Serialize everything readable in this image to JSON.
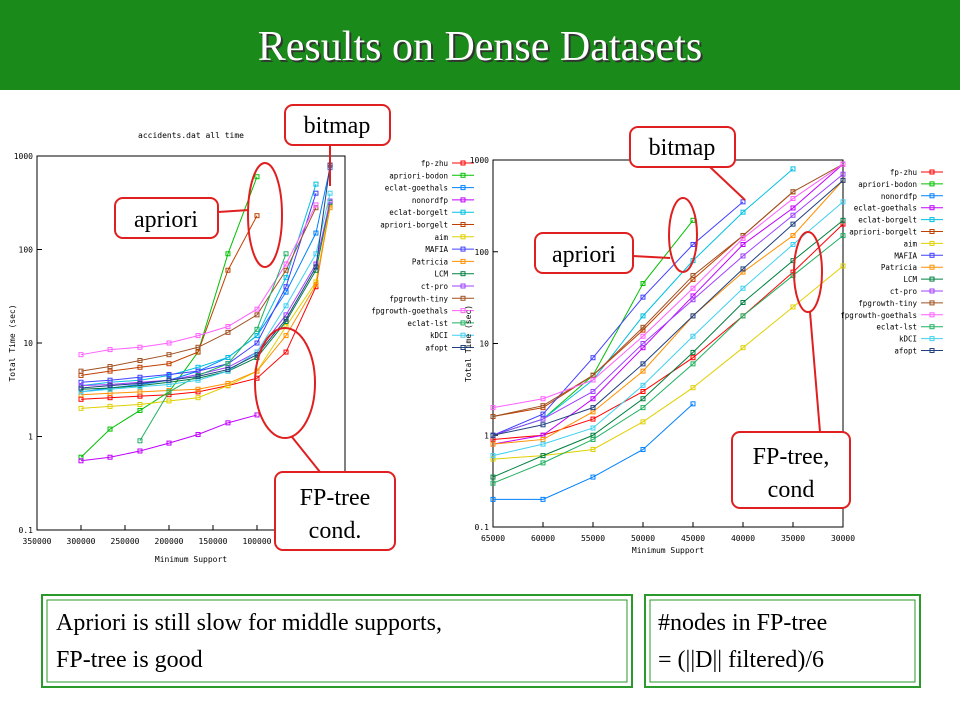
{
  "title": "Results on Dense Datasets",
  "chart_data": [
    {
      "type": "line",
      "title": "accidents.dat all time",
      "x_label": "Minimum Support",
      "y_label": "Total Time (sec)",
      "log_y": true,
      "x": [
        300000,
        267000,
        233000,
        200000,
        167000,
        133000,
        100000,
        67000,
        33000,
        17000
      ],
      "xlim": [
        350000,
        0
      ],
      "xticks": [
        350000,
        300000,
        250000,
        200000,
        150000,
        100000
      ],
      "ylim": [
        0.1,
        1000
      ],
      "yticks": [
        0.1,
        1,
        10,
        100,
        1000
      ],
      "series": [
        {
          "name": "fp-zhu",
          "color": "#ff0000",
          "values": [
            2.5,
            2.6,
            2.7,
            2.8,
            3,
            3.5,
            4.2,
            8,
            40,
            300
          ]
        },
        {
          "name": "apriori-bodon",
          "color": "#00c000",
          "values": [
            0.6,
            1.2,
            1.9,
            3,
            8,
            90,
            600,
            null,
            null,
            null
          ]
        },
        {
          "name": "eclat-goethals",
          "color": "#0080ff",
          "values": [
            3,
            3.3,
            3.6,
            4,
            5,
            7,
            12,
            35,
            150,
            750
          ]
        },
        {
          "name": "nonordfp",
          "color": "#c000ff",
          "values": [
            0.55,
            0.6,
            0.7,
            0.85,
            1.05,
            1.4,
            1.7,
            null,
            null,
            null
          ]
        },
        {
          "name": "eclat-borgelt",
          "color": "#00c0e0",
          "values": [
            3.5,
            3.8,
            4,
            4.5,
            5.5,
            7,
            12,
            50,
            500,
            null
          ]
        },
        {
          "name": "apriori-borgelt",
          "color": "#c04000",
          "values": [
            4.5,
            5,
            5.5,
            6,
            8,
            60,
            230,
            null,
            null,
            null
          ]
        },
        {
          "name": "aim",
          "color": "#e0d000",
          "values": [
            2,
            2.1,
            2.2,
            2.4,
            2.6,
            3.5,
            5,
            15,
            45,
            300
          ]
        },
        {
          "name": "MAFIA",
          "color": "#4040ff",
          "values": [
            3.8,
            4,
            4.3,
            4.6,
            5,
            6,
            10,
            40,
            400,
            null
          ]
        },
        {
          "name": "Patricia",
          "color": "#ff9000",
          "values": [
            2.8,
            2.9,
            3,
            3.1,
            3.2,
            3.7,
            5,
            12,
            42,
            280
          ]
        },
        {
          "name": "LCM",
          "color": "#008040",
          "values": [
            3.2,
            3.3,
            3.5,
            3.8,
            4.2,
            5,
            7,
            17,
            60,
            320
          ]
        },
        {
          "name": "ct-pro",
          "color": "#a040ff",
          "values": [
            3.5,
            3.6,
            3.8,
            4,
            4.6,
            5.5,
            8,
            20,
            70,
            330
          ]
        },
        {
          "name": "fpgrowth-tiny",
          "color": "#a05020",
          "values": [
            5,
            5.6,
            6.5,
            7.5,
            9,
            13,
            20,
            60,
            280,
            null
          ]
        },
        {
          "name": "fpgrowth-goethals",
          "color": "#ff60ff",
          "values": [
            7.5,
            8.5,
            9,
            10,
            12,
            15,
            23,
            70,
            300,
            null
          ]
        },
        {
          "name": "eclat-lst",
          "color": "#20b060",
          "values": [
            null,
            null,
            0.9,
            3,
            4.5,
            6,
            14,
            90,
            null,
            null
          ]
        },
        {
          "name": "kDCI",
          "color": "#40d0f0",
          "values": [
            3,
            3.2,
            3.4,
            3.6,
            4,
            5,
            8,
            25,
            90,
            400
          ]
        },
        {
          "name": "afopt",
          "color": "#204080",
          "values": [
            3.3,
            3.5,
            3.7,
            4,
            4.4,
            5.2,
            7.5,
            18,
            65,
            800
          ]
        }
      ]
    },
    {
      "type": "line",
      "x_label": "Minimum Support",
      "y_label": "Total Time (sec)",
      "log_y": true,
      "x": [
        65000,
        60000,
        55000,
        50000,
        45000,
        40000,
        35000,
        30000
      ],
      "xlim": [
        65000,
        30000
      ],
      "xticks": [
        65000,
        60000,
        55000,
        50000,
        45000,
        40000,
        35000,
        30000
      ],
      "ylim": [
        0.1,
        1000
      ],
      "yticks": [
        0.1,
        1,
        10,
        100,
        1000
      ],
      "series": [
        {
          "name": "fp-zhu",
          "color": "#ff0000",
          "values": [
            0.9,
            1,
            1.5,
            3,
            7,
            20,
            60,
            200
          ]
        },
        {
          "name": "apriori-bodon",
          "color": "#00c000",
          "values": [
            1,
            1.5,
            4.5,
            45,
            220,
            null,
            null,
            null
          ]
        },
        {
          "name": "nonordfp",
          "color": "#0080ff",
          "values": [
            0.2,
            0.2,
            0.35,
            0.7,
            2.2,
            null,
            null,
            null
          ]
        },
        {
          "name": "eclat-goethals",
          "color": "#c000ff",
          "values": [
            0.8,
            1,
            2.5,
            9,
            33,
            120,
            300,
            900
          ]
        },
        {
          "name": "eclat-borgelt",
          "color": "#00c0e0",
          "values": [
            1,
            1.5,
            4,
            20,
            80,
            270,
            800,
            null
          ]
        },
        {
          "name": "apriori-borgelt",
          "color": "#c04000",
          "values": [
            1.6,
            2,
            4.5,
            14,
            50,
            150,
            450,
            null
          ]
        },
        {
          "name": "aim",
          "color": "#e0d000",
          "values": [
            0.55,
            0.6,
            0.7,
            1.4,
            3.3,
            9,
            25,
            70
          ]
        },
        {
          "name": "MAFIA",
          "color": "#4040ff",
          "values": [
            1,
            1.7,
            7,
            32,
            120,
            350,
            null,
            null
          ]
        },
        {
          "name": "Patricia",
          "color": "#ff9000",
          "values": [
            0.8,
            0.9,
            1.8,
            5,
            20,
            60,
            150,
            600
          ]
        },
        {
          "name": "LCM",
          "color": "#008040",
          "values": [
            0.35,
            0.6,
            1,
            2.5,
            8,
            28,
            80,
            220
          ]
        },
        {
          "name": "ct-pro",
          "color": "#a040ff",
          "values": [
            1,
            1.5,
            3,
            10,
            30,
            90,
            250,
            700
          ]
        },
        {
          "name": "fpgrowth-tiny",
          "color": "#a05020",
          "values": [
            1.6,
            2.1,
            4.5,
            15,
            55,
            150,
            450,
            900
          ]
        },
        {
          "name": "fpgrowth-goethals",
          "color": "#ff60ff",
          "values": [
            2,
            2.5,
            4,
            12,
            40,
            140,
            380,
            900
          ]
        },
        {
          "name": "eclat-lst",
          "color": "#20b060",
          "values": [
            0.3,
            0.5,
            0.9,
            2,
            6,
            20,
            55,
            150
          ]
        },
        {
          "name": "kDCI",
          "color": "#40d0f0",
          "values": [
            0.6,
            0.8,
            1.2,
            3.5,
            12,
            40,
            120,
            350
          ]
        },
        {
          "name": "afopt",
          "color": "#204080",
          "values": [
            1,
            1.3,
            2,
            6,
            20,
            65,
            200,
            600
          ]
        }
      ]
    }
  ],
  "callouts": {
    "left_bitmap": "bitmap",
    "left_apriori": "apriori",
    "left_fptree": [
      "FP-tree",
      "cond."
    ],
    "right_bitmap": "bitmap",
    "right_apriori": "apriori",
    "right_fptree": [
      "FP-tree,",
      "cond"
    ]
  },
  "notes": {
    "left": [
      "Apriori is still slow for middle supports,",
      "FP-tree is good"
    ],
    "right": [
      "#nodes in FP-tree",
      "= (||D|| filtered)/6"
    ]
  }
}
